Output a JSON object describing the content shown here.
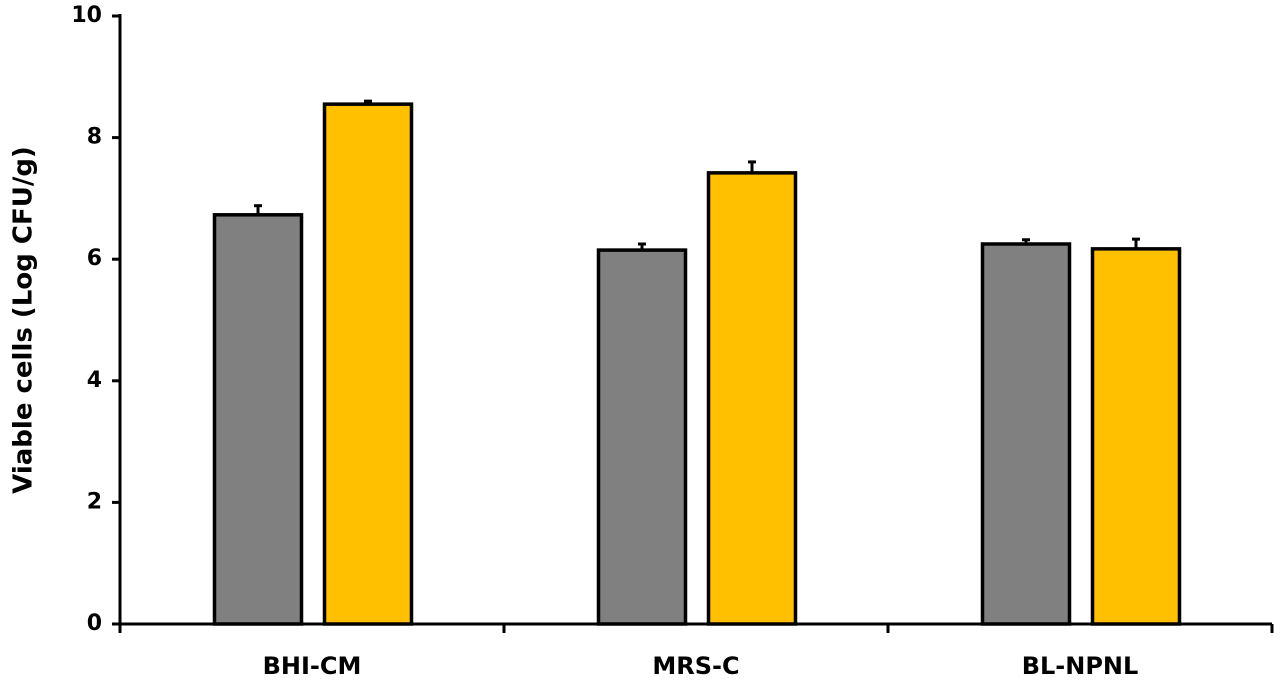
{
  "chart_data": {
    "type": "bar",
    "y_label": "Viable cells (Log CFU/g)",
    "categories": [
      "BHI-CM",
      "MRS-C",
      "BL-NPNL"
    ],
    "series": [
      {
        "color": "#808080",
        "values": [
          6.73,
          6.15,
          6.25
        ],
        "errors": [
          0.15,
          0.1,
          0.07
        ]
      },
      {
        "color": "#ffc000",
        "values": [
          8.55,
          7.42,
          6.17
        ],
        "errors": [
          0.05,
          0.18,
          0.16
        ]
      }
    ],
    "ylim": [
      0,
      10
    ],
    "yticks": [
      0,
      2,
      4,
      6,
      8,
      10
    ]
  }
}
